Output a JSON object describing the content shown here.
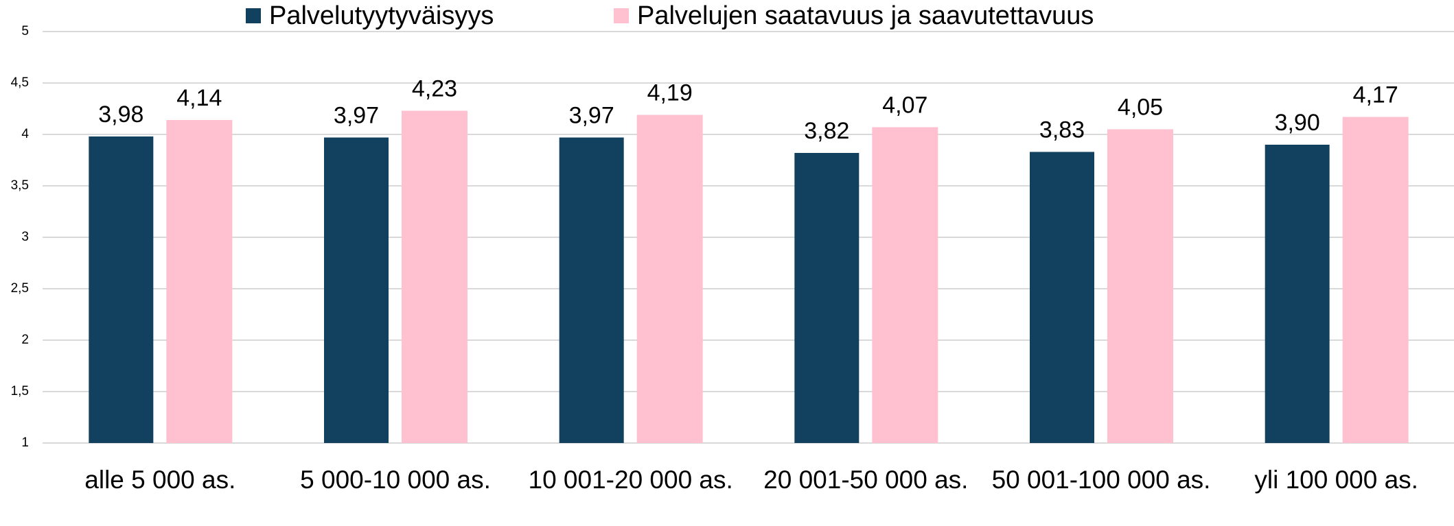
{
  "chart_data": {
    "type": "bar",
    "categories": [
      "alle 5 000 as.",
      "5 000-10 000 as.",
      "10 001-20 000 as.",
      "20 001-50 000 as.",
      "50 001-100 000 as.",
      "yli 100 000 as."
    ],
    "series": [
      {
        "name": "Palvelutyytyväisyys",
        "color": "#12405f",
        "values": [
          3.98,
          3.97,
          3.97,
          3.82,
          3.83,
          3.9
        ],
        "value_labels": [
          "3,98",
          "3,97",
          "3,97",
          "3,82",
          "3,83",
          "3,90"
        ]
      },
      {
        "name": "Palvelujen saatavuus ja saavutettavuus",
        "color": "#ffc0d0",
        "values": [
          4.14,
          4.23,
          4.19,
          4.07,
          4.05,
          4.17
        ],
        "value_labels": [
          "4,14",
          "4,23",
          "4,19",
          "4,07",
          "4,05",
          "4,17"
        ]
      }
    ],
    "ylim": [
      1,
      5
    ],
    "yticks": [
      1,
      {
        "value": 1.5,
        "label": "1,5"
      },
      2,
      {
        "value": 2.5,
        "label": "2,5"
      },
      3,
      {
        "value": 3.5,
        "label": "3,5"
      },
      4,
      {
        "value": 4.5,
        "label": "4,5"
      },
      5
    ],
    "grid": true,
    "legend": "top"
  }
}
